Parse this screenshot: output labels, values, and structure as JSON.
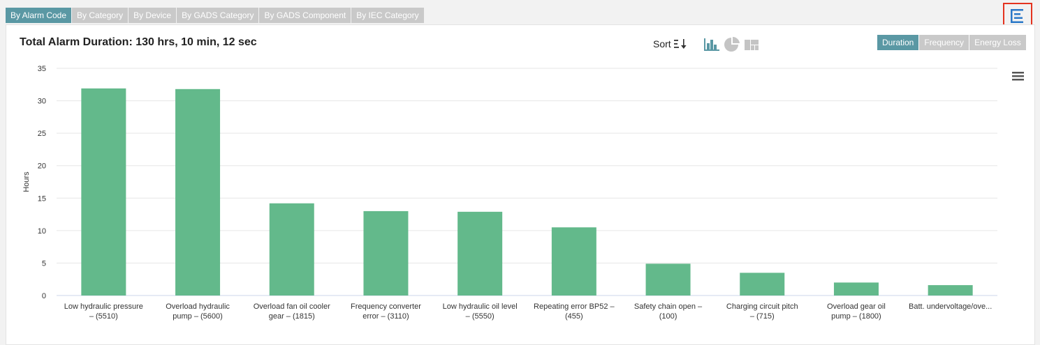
{
  "tabs": [
    {
      "label": "By Alarm Code",
      "active": true
    },
    {
      "label": "By Category",
      "active": false
    },
    {
      "label": "By Device",
      "active": false
    },
    {
      "label": "By GADS Category",
      "active": false
    },
    {
      "label": "By GADS Component",
      "active": false
    },
    {
      "label": "By IEC Category",
      "active": false
    }
  ],
  "top_icon": "list-view-icon",
  "panel": {
    "title": "Total Alarm Duration: 130 hrs, 10 min, 12 sec",
    "sort_label": "Sort",
    "chart_type_icons": [
      "bar-chart-icon",
      "pie-chart-icon",
      "treemap-icon"
    ],
    "metrics": [
      {
        "label": "Duration",
        "active": true
      },
      {
        "label": "Frequency",
        "active": false
      },
      {
        "label": "Energy Loss",
        "active": false
      }
    ]
  },
  "colors": {
    "bar": "#63b98b",
    "accent": "#5a98a4",
    "highlight_border": "#e4331f"
  },
  "chart_data": {
    "type": "bar",
    "title": "Total Alarm Duration: 130 hrs, 10 min, 12 sec",
    "ylabel": "Hours",
    "xlabel": "",
    "ylim": [
      0,
      35
    ],
    "yticks": [
      0,
      5,
      10,
      15,
      20,
      25,
      30,
      35
    ],
    "grid": true,
    "categories": [
      [
        "Low hydraulic pressure",
        "– (5510)"
      ],
      [
        "Overload hydraulic",
        "pump – (5600)"
      ],
      [
        "Overload fan oil cooler",
        "gear – (1815)"
      ],
      [
        "Frequency converter",
        "error – (3110)"
      ],
      [
        "Low hydraulic oil level",
        "– (5550)"
      ],
      [
        "Repeating error BP52 –",
        "(455)"
      ],
      [
        "Safety chain open –",
        "(100)"
      ],
      [
        "Charging circuit pitch",
        "– (715)"
      ],
      [
        "Overload gear oil",
        "pump – (1800)"
      ],
      [
        "Batt. undervoltage/ove..."
      ]
    ],
    "values": [
      31.9,
      31.8,
      14.2,
      13.0,
      12.9,
      10.5,
      4.9,
      3.5,
      2.0,
      1.6
    ]
  }
}
